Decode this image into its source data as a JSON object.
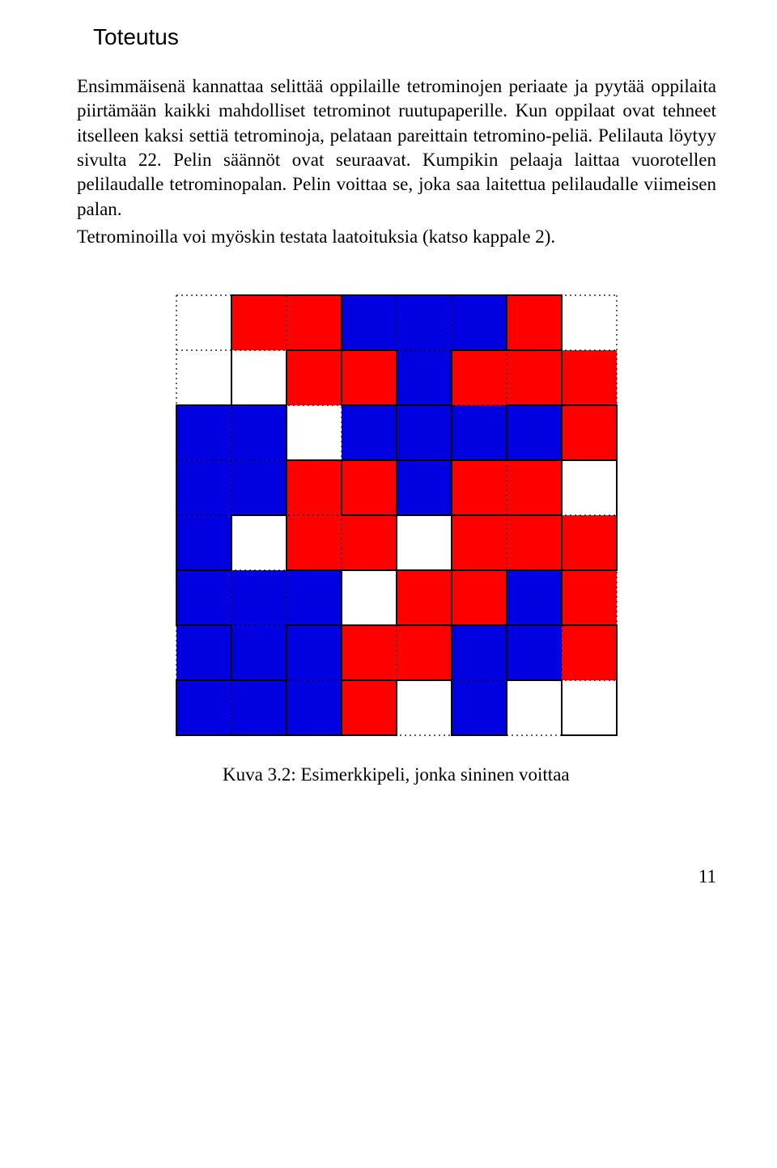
{
  "section_title": "Toteutus",
  "paragraph1": "Ensimmäisenä kannattaa selittää oppilaille tetrominojen periaate ja pyytää oppilaita piirtämään kaikki mahdolliset tetrominot ruutupaperille. Kun oppilaat ovat tehneet itselleen kaksi settiä tetrominoja, pelataan pareittain tetromino-peliä. Pelilauta löytyy sivulta 22. Pelin säännöt ovat seuraavat. Kumpikin pelaaja laittaa vuorotellen pelilaudalle tetrominopalan. Pelin voittaa se, joka saa laitettua pelilaudalle viimeisen palan.",
  "paragraph2": "Tetrominoilla voi myöskin testata laatoituksia (katso kappale 2).",
  "caption": "Kuva 3.2: Esimerkkipeli, jonka sininen voittaa",
  "page_number": "11",
  "grid": {
    "rows": 8,
    "cols": 8,
    "cell_size": 68,
    "colors": {
      "red": "#ff0000",
      "blue": "#0000e1",
      "empty": "#ffffff"
    },
    "dotted_stroke": "#000000",
    "solid_stroke": "#000000",
    "cells": [
      [
        "",
        "r",
        "r",
        "b",
        "b",
        "b",
        "r",
        ""
      ],
      [
        "",
        "",
        "r",
        "r",
        "b",
        "r",
        "r",
        "r"
      ],
      [
        "b",
        "b",
        "",
        "b",
        "b",
        "b",
        "b",
        "r"
      ],
      [
        "b",
        "b",
        "r",
        "r",
        "b",
        "r",
        "r",
        ""
      ],
      [
        "b",
        "",
        "r",
        "r",
        "",
        "r",
        "r",
        "r"
      ],
      [
        "b",
        "b",
        "b",
        "",
        "r",
        "r",
        "b",
        "r"
      ],
      [
        "b",
        "b",
        "b",
        "r",
        "r",
        "b",
        "b",
        "r"
      ],
      [
        "b",
        "b",
        "b",
        "r",
        "",
        "b",
        "",
        ""
      ]
    ],
    "piece_outlines": [
      [
        [
          1,
          0
        ],
        [
          3,
          0
        ],
        [
          3,
          1
        ],
        [
          2,
          1
        ],
        [
          2,
          2
        ],
        [
          1,
          2
        ]
      ],
      [
        [
          3,
          0
        ],
        [
          6,
          0
        ],
        [
          6,
          1
        ],
        [
          5,
          1
        ],
        [
          5,
          2
        ],
        [
          4,
          2
        ],
        [
          4,
          1
        ],
        [
          3,
          1
        ]
      ],
      [
        [
          6,
          0
        ],
        [
          7,
          0
        ],
        [
          7,
          2
        ],
        [
          8,
          2
        ],
        [
          8,
          3
        ],
        [
          6,
          3
        ],
        [
          6,
          2
        ],
        [
          7,
          2
        ],
        [
          7,
          1
        ],
        [
          6,
          1
        ]
      ],
      [
        [
          3,
          1
        ],
        [
          4,
          1
        ],
        [
          4,
          2
        ],
        [
          5,
          2
        ],
        [
          5,
          3
        ],
        [
          4,
          3
        ],
        [
          4,
          4
        ],
        [
          3,
          4
        ],
        [
          3,
          3
        ],
        [
          4,
          3
        ],
        [
          4,
          2
        ],
        [
          3,
          2
        ]
      ],
      [
        [
          5,
          1
        ],
        [
          7,
          1
        ],
        [
          7,
          2
        ],
        [
          6,
          2
        ],
        [
          6,
          3
        ],
        [
          5,
          3
        ]
      ],
      [
        [
          0,
          2
        ],
        [
          2,
          2
        ],
        [
          2,
          4
        ],
        [
          1,
          4
        ],
        [
          1,
          5
        ],
        [
          0,
          5
        ]
      ],
      [
        [
          6,
          2
        ],
        [
          7,
          2
        ],
        [
          7,
          3
        ],
        [
          6,
          3
        ]
      ],
      [
        [
          4,
          3
        ],
        [
          5,
          3
        ],
        [
          5,
          4
        ],
        [
          7,
          4
        ],
        [
          7,
          5
        ],
        [
          5,
          5
        ],
        [
          5,
          6
        ],
        [
          4,
          6
        ],
        [
          4,
          5
        ],
        [
          5,
          5
        ],
        [
          5,
          4
        ],
        [
          4,
          4
        ]
      ],
      [
        [
          2,
          3
        ],
        [
          4,
          3
        ],
        [
          4,
          5
        ],
        [
          2,
          5
        ]
      ],
      [
        [
          7,
          3
        ],
        [
          8,
          3
        ],
        [
          8,
          5
        ],
        [
          7,
          5
        ],
        [
          7,
          6
        ],
        [
          6,
          6
        ],
        [
          6,
          5
        ],
        [
          7,
          5
        ]
      ],
      [
        [
          0,
          5
        ],
        [
          1,
          5
        ],
        [
          1,
          4
        ],
        [
          2,
          4
        ],
        [
          2,
          5
        ],
        [
          3,
          5
        ],
        [
          3,
          8
        ],
        [
          2,
          8
        ],
        [
          2,
          7
        ],
        [
          1,
          7
        ],
        [
          1,
          6
        ],
        [
          0,
          6
        ]
      ],
      [
        [
          6,
          5
        ],
        [
          7,
          5
        ],
        [
          7,
          6
        ],
        [
          8,
          6
        ],
        [
          8,
          8
        ],
        [
          7,
          8
        ],
        [
          7,
          7
        ],
        [
          6,
          7
        ]
      ],
      [
        [
          3,
          6
        ],
        [
          5,
          6
        ],
        [
          5,
          7
        ],
        [
          4,
          7
        ],
        [
          4,
          8
        ],
        [
          3,
          8
        ]
      ],
      [
        [
          5,
          6
        ],
        [
          6,
          6
        ],
        [
          6,
          8
        ],
        [
          5,
          8
        ],
        [
          5,
          7
        ],
        [
          4,
          7
        ],
        [
          4,
          8
        ],
        [
          3,
          8
        ],
        [
          3,
          7
        ],
        [
          5,
          7
        ]
      ],
      [
        [
          0,
          7
        ],
        [
          2,
          7
        ],
        [
          2,
          6
        ],
        [
          3,
          6
        ],
        [
          3,
          8
        ],
        [
          0,
          8
        ]
      ]
    ]
  }
}
